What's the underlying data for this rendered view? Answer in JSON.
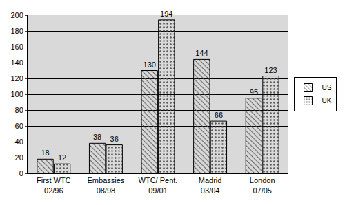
{
  "chart_data": {
    "type": "bar",
    "categories": [
      "First WTC 02/96",
      "Embassies 08/98",
      "WTC/ Pent. 09/01",
      "Madrid 03/04",
      "London 07/05"
    ],
    "series": [
      {
        "name": "US",
        "color": "#e6e6e6",
        "values": [
          18,
          38,
          130,
          144,
          95
        ]
      },
      {
        "name": "UK",
        "color": "#8c8c8c",
        "values": [
          12,
          36,
          194,
          66,
          123
        ]
      }
    ],
    "ylim": [
      0,
      200
    ],
    "yticks": [
      0,
      20,
      40,
      60,
      80,
      100,
      120,
      140,
      160,
      180,
      200
    ],
    "grid": true,
    "legend": "right",
    "data_labels": true
  }
}
